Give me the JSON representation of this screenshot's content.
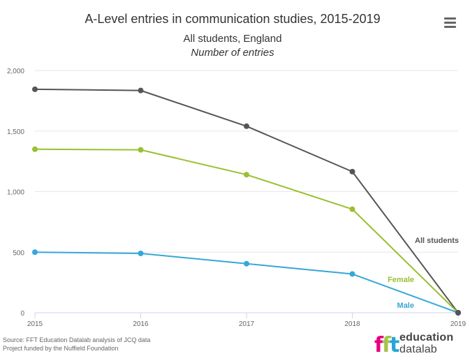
{
  "header": {
    "title": "A-Level entries in communication studies, 2015-2019",
    "subtitle_line1": "All students, England",
    "subtitle_line2": "Number of entries"
  },
  "footer": {
    "source_line1": "Source: FFT Education Datalab analysis of JCQ data",
    "source_line2": "Project funded by the Nuffield Foundation"
  },
  "logo": {
    "mark_text": "fft",
    "word_line1": "education",
    "word_line2": "datalab",
    "mark_colors": [
      "#e5007e",
      "#a6c34c",
      "#26a6d8"
    ]
  },
  "icons": {
    "menu": "hamburger-menu-icon"
  },
  "chart_data": {
    "type": "line",
    "title": "A-Level entries in communication studies, 2015-2019",
    "subtitle": "All students, England / Number of entries",
    "x": [
      "2015",
      "2016",
      "2017",
      "2018",
      "2019"
    ],
    "ylim": [
      0,
      2000
    ],
    "yticks": [
      0,
      500,
      1000,
      1500,
      2000
    ],
    "ytick_labels": [
      "0",
      "500",
      "1,000",
      "1,500",
      "2,000"
    ],
    "grid": true,
    "series": [
      {
        "name": "All students",
        "color": "#555555",
        "values": [
          1845,
          1835,
          1540,
          1165,
          0
        ]
      },
      {
        "name": "Female",
        "color": "#99c030",
        "values": [
          1350,
          1345,
          1140,
          855,
          0
        ]
      },
      {
        "name": "Male",
        "color": "#35a8d8",
        "values": [
          500,
          490,
          405,
          320,
          0
        ]
      }
    ]
  }
}
